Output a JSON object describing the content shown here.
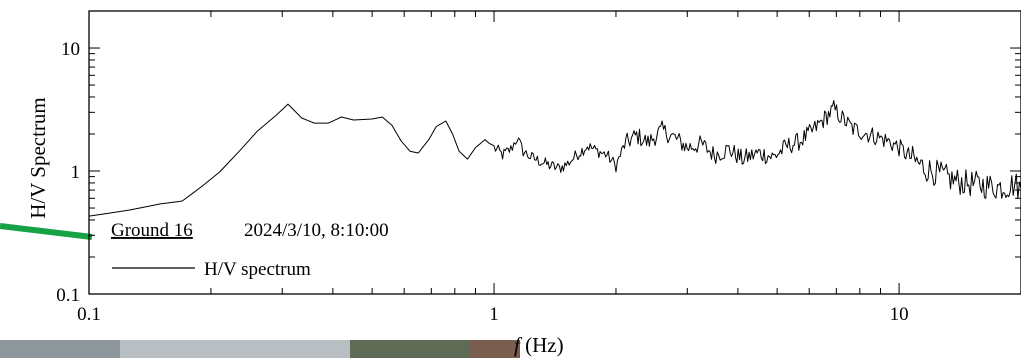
{
  "chart_data": {
    "type": "line",
    "x_scale": "log",
    "y_scale": "log",
    "xlim": [
      0.1,
      20
    ],
    "ylim": [
      0.1,
      20
    ],
    "x_ticks": [
      {
        "value": 0.1,
        "label": "0.1"
      },
      {
        "value": 1,
        "label": "1"
      },
      {
        "value": 10,
        "label": "10"
      }
    ],
    "y_ticks": [
      {
        "value": 0.1,
        "label": "0.1"
      },
      {
        "value": 1,
        "label": "1"
      },
      {
        "value": 10,
        "label": "10"
      }
    ],
    "xlabel_italic": "f",
    "xlabel_unit": " (Hz)",
    "ylabel": "H/V Spectrum",
    "grid": false,
    "legend": {
      "position": "bottom-left",
      "entries": [
        "H/V spectrum"
      ]
    },
    "annotation": {
      "station": "Ground 16",
      "datetime": "2024/3/10, 8:10:00"
    },
    "series": [
      {
        "name": "H/V spectrum",
        "color": "#000000",
        "points": [
          [
            0.1,
            0.43
          ],
          [
            0.125,
            0.48
          ],
          [
            0.15,
            0.54
          ],
          [
            0.17,
            0.57
          ],
          [
            0.19,
            0.75
          ],
          [
            0.21,
            0.98
          ],
          [
            0.235,
            1.45
          ],
          [
            0.26,
            2.1
          ],
          [
            0.29,
            2.85
          ],
          [
            0.31,
            3.5
          ],
          [
            0.335,
            2.7
          ],
          [
            0.36,
            2.45
          ],
          [
            0.39,
            2.45
          ],
          [
            0.42,
            2.75
          ],
          [
            0.45,
            2.6
          ],
          [
            0.5,
            2.65
          ],
          [
            0.53,
            2.75
          ],
          [
            0.56,
            2.35
          ],
          [
            0.59,
            1.75
          ],
          [
            0.62,
            1.45
          ],
          [
            0.65,
            1.4
          ],
          [
            0.69,
            1.8
          ],
          [
            0.72,
            2.3
          ],
          [
            0.76,
            2.55
          ],
          [
            0.79,
            2.0
          ],
          [
            0.82,
            1.45
          ],
          [
            0.86,
            1.25
          ],
          [
            0.9,
            1.55
          ],
          [
            0.95,
            1.8
          ],
          [
            1.0,
            1.55
          ],
          [
            1.05,
            1.35
          ],
          [
            1.1,
            1.5
          ],
          [
            1.14,
            1.85
          ],
          [
            1.18,
            1.45
          ],
          [
            1.23,
            1.3
          ],
          [
            1.3,
            1.2
          ],
          [
            1.38,
            1.1
          ],
          [
            1.45,
            1.05
          ],
          [
            1.52,
            1.15
          ],
          [
            1.6,
            1.35
          ],
          [
            1.7,
            1.6
          ],
          [
            1.8,
            1.45
          ],
          [
            1.9,
            1.35
          ],
          [
            2.0,
            1.1
          ],
          [
            2.1,
            1.65
          ],
          [
            2.25,
            1.95
          ],
          [
            2.4,
            1.7
          ],
          [
            2.6,
            2.15
          ],
          [
            2.8,
            1.85
          ],
          [
            3.0,
            1.55
          ],
          [
            3.25,
            1.65
          ],
          [
            3.5,
            1.35
          ],
          [
            3.8,
            1.5
          ],
          [
            4.1,
            1.25
          ],
          [
            4.5,
            1.4
          ],
          [
            4.9,
            1.3
          ],
          [
            5.3,
            1.6
          ],
          [
            5.7,
            1.75
          ],
          [
            6.1,
            2.1
          ],
          [
            6.5,
            2.6
          ],
          [
            6.9,
            3.2
          ],
          [
            7.3,
            2.6
          ],
          [
            7.7,
            2.2
          ],
          [
            8.2,
            2.05
          ],
          [
            8.8,
            1.9
          ],
          [
            9.4,
            1.75
          ],
          [
            10.0,
            1.55
          ],
          [
            10.8,
            1.25
          ],
          [
            11.6,
            1.05
          ],
          [
            12.5,
            0.95
          ],
          [
            13.5,
            0.85
          ],
          [
            14.5,
            0.8
          ],
          [
            15.5,
            0.78
          ],
          [
            16.5,
            0.76
          ],
          [
            17.5,
            0.74
          ],
          [
            18.5,
            0.75
          ],
          [
            19.3,
            0.78
          ],
          [
            20.0,
            0.72
          ]
        ]
      }
    ]
  }
}
